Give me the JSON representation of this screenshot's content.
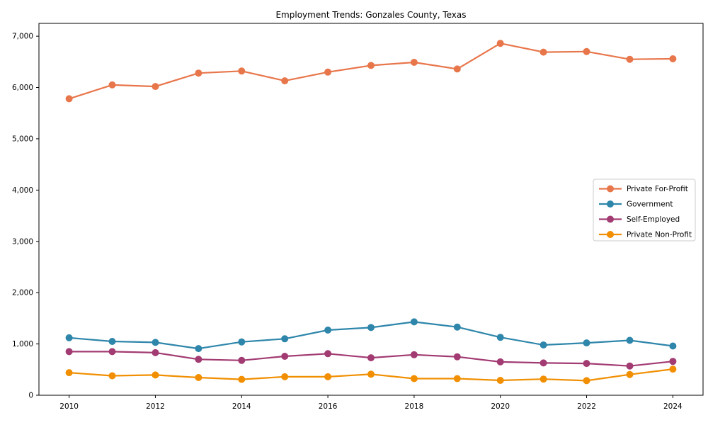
{
  "chart_data": {
    "type": "line",
    "title": "Employment Trends: Gonzales County, Texas",
    "xlabel": "",
    "ylabel": "",
    "x": [
      2010,
      2011,
      2012,
      2013,
      2014,
      2015,
      2016,
      2017,
      2018,
      2019,
      2020,
      2021,
      2022,
      2023,
      2024
    ],
    "series": [
      {
        "name": "Private For-Profit",
        "color": "#E8764B",
        "values": [
          5780,
          6050,
          6020,
          6280,
          6320,
          6130,
          6300,
          6430,
          6490,
          6360,
          6860,
          6690,
          6700,
          6550,
          6560
        ]
      },
      {
        "name": "Government",
        "color": "#2E86AB",
        "values": [
          1120,
          1050,
          1030,
          910,
          1040,
          1100,
          1270,
          1320,
          1430,
          1330,
          1130,
          980,
          1020,
          1070,
          960
        ]
      },
      {
        "name": "Self-Employed",
        "color": "#A23B72",
        "values": [
          850,
          850,
          830,
          700,
          680,
          760,
          810,
          730,
          790,
          750,
          650,
          630,
          620,
          570,
          660
        ]
      },
      {
        "name": "Private Non-Profit",
        "color": "#F18F01",
        "values": [
          440,
          380,
          395,
          345,
          310,
          360,
          360,
          410,
          325,
          325,
          290,
          315,
          285,
          405,
          510
        ]
      }
    ],
    "marker": "o",
    "grid": false,
    "legend_position": "right",
    "xlim": [
      2009.3,
      2024.7
    ],
    "ylim": [
      0,
      7250
    ],
    "xticks": [
      2010,
      2012,
      2014,
      2016,
      2018,
      2020,
      2022,
      2024
    ],
    "xtick_labels": [
      "2010",
      "2012",
      "2014",
      "2016",
      "2018",
      "2020",
      "2022",
      "2024"
    ],
    "yticks": [
      0,
      1000,
      2000,
      3000,
      4000,
      5000,
      6000,
      7000
    ],
    "ytick_labels": [
      "0",
      "1,000",
      "2,000",
      "3,000",
      "4,000",
      "5,000",
      "6,000",
      "7,000"
    ]
  },
  "style": {
    "axis_color": "#000000",
    "legend_border_color": "#cccccc",
    "background": "#ffffff"
  }
}
